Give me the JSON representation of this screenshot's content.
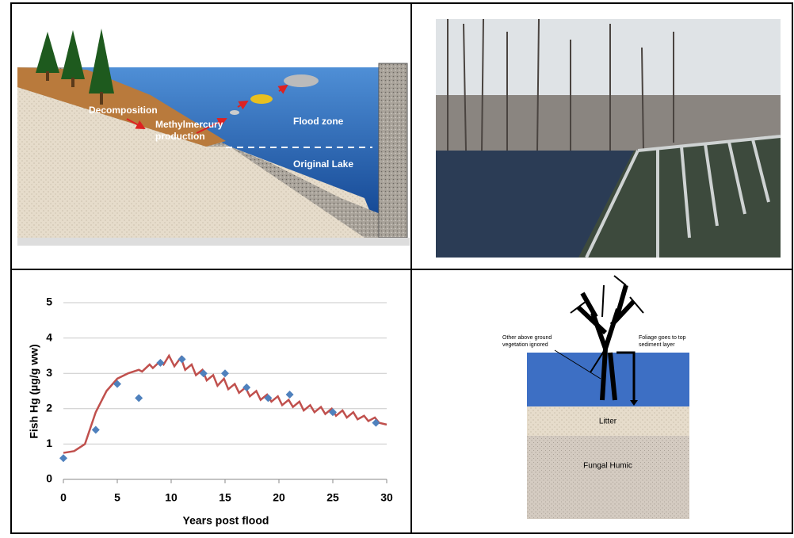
{
  "flood_diagram": {
    "labels": {
      "decomposition": "Decomposition",
      "methylation": [
        "Methylmercury",
        "production"
      ],
      "flood_zone": "Flood zone",
      "original_lake": "Original Lake"
    }
  },
  "chart_data": {
    "type": "scatter",
    "x_label": "Years post flood",
    "y_label": "Fish Hg (µg/g ww)",
    "xlim": [
      0,
      30
    ],
    "xticks": [
      0,
      5,
      10,
      15,
      20,
      25,
      30
    ],
    "ylim": [
      0,
      5
    ],
    "yticks": [
      0,
      1,
      2,
      3,
      4,
      5
    ],
    "grid": true,
    "series": [
      {
        "mode": "markers",
        "marker": "diamond",
        "color": "#4f81bd",
        "x": [
          0,
          3,
          5,
          7,
          9,
          11,
          13,
          15,
          17,
          19,
          21,
          25,
          29
        ],
        "values": [
          0.6,
          1.4,
          2.7,
          2.3,
          3.3,
          3.4,
          3.0,
          3.0,
          2.6,
          2.3,
          2.4,
          1.9,
          1.6
        ]
      },
      {
        "mode": "line",
        "color": "#c0504d",
        "x": [
          0,
          1,
          2,
          3,
          4,
          5,
          6,
          7,
          7.3,
          8,
          8.3,
          9,
          9.3,
          9.8,
          10.3,
          10.9,
          11.3,
          11.9,
          12.3,
          12.9,
          13.3,
          13.9,
          14.3,
          14.9,
          15.3,
          15.9,
          16.3,
          16.9,
          17.3,
          17.9,
          18.3,
          18.9,
          19.3,
          19.9,
          20.3,
          20.9,
          21.3,
          21.9,
          22.3,
          22.9,
          23.3,
          23.9,
          24.3,
          24.9,
          25.3,
          25.9,
          26.3,
          26.9,
          27.3,
          27.9,
          28.3,
          28.9,
          29.3,
          30
        ],
        "values": [
          0.75,
          0.8,
          1.0,
          1.9,
          2.5,
          2.85,
          3.0,
          3.1,
          3.05,
          3.25,
          3.15,
          3.35,
          3.25,
          3.5,
          3.2,
          3.45,
          3.1,
          3.25,
          2.95,
          3.1,
          2.8,
          2.95,
          2.65,
          2.85,
          2.55,
          2.7,
          2.45,
          2.6,
          2.35,
          2.5,
          2.25,
          2.4,
          2.2,
          2.35,
          2.1,
          2.25,
          2.05,
          2.2,
          1.95,
          2.1,
          1.9,
          2.05,
          1.85,
          2.0,
          1.8,
          1.95,
          1.75,
          1.9,
          1.7,
          1.8,
          1.65,
          1.75,
          1.6,
          1.55
        ]
      }
    ]
  },
  "soil_diagram": {
    "labels": {
      "vegetation": [
        "Other above ground",
        "vegetation ignored"
      ],
      "foliage": [
        "Foliage goes to top",
        "sediment layer"
      ],
      "litter": "Litter",
      "humic": "Fungal Humic"
    }
  }
}
